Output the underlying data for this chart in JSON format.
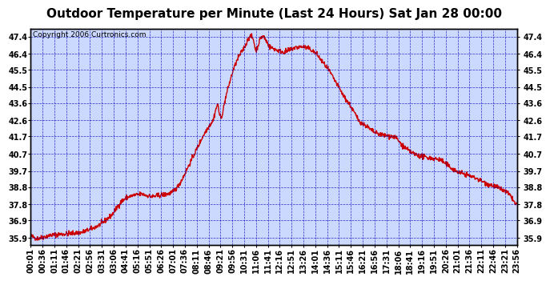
{
  "title": "Outdoor Temperature per Minute (Last 24 Hours) Sat Jan 28 00:00",
  "copyright": "Copyright 2006 Curtronics.com",
  "background_color": "#ccd9ff",
  "line_color": "#cc0000",
  "line_width": 1.0,
  "y_ticks": [
    35.9,
    36.9,
    37.8,
    38.8,
    39.7,
    40.7,
    41.7,
    42.6,
    43.6,
    44.5,
    45.5,
    46.4,
    47.4
  ],
  "ylim": [
    35.5,
    47.85
  ],
  "xlim": [
    0,
    24
  ],
  "x_tick_labels": [
    "00:01",
    "00:36",
    "01:11",
    "01:46",
    "02:21",
    "02:56",
    "03:31",
    "03:06",
    "04:41",
    "05:16",
    "05:51",
    "06:26",
    "07:01",
    "07:36",
    "08:11",
    "08:46",
    "09:21",
    "09:56",
    "10:31",
    "11:06",
    "11:41",
    "12:16",
    "12:51",
    "13:26",
    "14:01",
    "14:36",
    "15:11",
    "15:46",
    "16:21",
    "16:56",
    "17:31",
    "18:06",
    "18:41",
    "19:16",
    "19:51",
    "20:26",
    "21:01",
    "21:36",
    "22:11",
    "22:46",
    "23:21",
    "23:56"
  ],
  "grid_color": "#0000bb",
  "grid_style": "--",
  "grid_alpha": 0.8,
  "title_fontsize": 11,
  "tick_fontsize": 7,
  "copyright_fontsize": 6.5,
  "keypoints": [
    [
      0.0,
      36.0
    ],
    [
      0.3,
      35.85
    ],
    [
      0.5,
      35.9
    ],
    [
      1.0,
      36.05
    ],
    [
      1.5,
      36.1
    ],
    [
      2.0,
      36.15
    ],
    [
      2.5,
      36.2
    ],
    [
      3.0,
      36.4
    ],
    [
      3.5,
      36.7
    ],
    [
      3.8,
      37.0
    ],
    [
      4.0,
      37.2
    ],
    [
      4.3,
      37.7
    ],
    [
      4.5,
      38.0
    ],
    [
      4.75,
      38.2
    ],
    [
      5.0,
      38.3
    ],
    [
      5.25,
      38.35
    ],
    [
      5.5,
      38.4
    ],
    [
      5.75,
      38.3
    ],
    [
      6.0,
      38.25
    ],
    [
      6.25,
      38.3
    ],
    [
      6.5,
      38.35
    ],
    [
      6.75,
      38.4
    ],
    [
      7.0,
      38.5
    ],
    [
      7.25,
      38.8
    ],
    [
      7.5,
      39.3
    ],
    [
      7.75,
      39.9
    ],
    [
      8.0,
      40.5
    ],
    [
      8.25,
      41.1
    ],
    [
      8.5,
      41.7
    ],
    [
      8.75,
      42.2
    ],
    [
      9.0,
      42.6
    ],
    [
      9.15,
      43.3
    ],
    [
      9.25,
      43.55
    ],
    [
      9.3,
      43.0
    ],
    [
      9.4,
      42.7
    ],
    [
      9.5,
      43.2
    ],
    [
      9.6,
      43.8
    ],
    [
      9.75,
      44.5
    ],
    [
      10.0,
      45.5
    ],
    [
      10.25,
      46.2
    ],
    [
      10.5,
      46.7
    ],
    [
      10.65,
      47.0
    ],
    [
      10.75,
      47.35
    ],
    [
      10.9,
      47.4
    ],
    [
      11.0,
      47.2
    ],
    [
      11.1,
      46.6
    ],
    [
      11.2,
      46.8
    ],
    [
      11.35,
      47.35
    ],
    [
      11.5,
      47.4
    ],
    [
      11.65,
      47.1
    ],
    [
      11.8,
      46.8
    ],
    [
      12.0,
      46.7
    ],
    [
      12.2,
      46.6
    ],
    [
      12.5,
      46.5
    ],
    [
      12.75,
      46.6
    ],
    [
      13.0,
      46.75
    ],
    [
      13.25,
      46.8
    ],
    [
      13.5,
      46.8
    ],
    [
      13.75,
      46.7
    ],
    [
      14.0,
      46.5
    ],
    [
      14.15,
      46.35
    ],
    [
      14.3,
      46.1
    ],
    [
      14.5,
      45.8
    ],
    [
      14.75,
      45.4
    ],
    [
      15.0,
      44.9
    ],
    [
      15.25,
      44.4
    ],
    [
      15.5,
      43.9
    ],
    [
      15.75,
      43.5
    ],
    [
      16.0,
      43.0
    ],
    [
      16.2,
      42.6
    ],
    [
      16.4,
      42.4
    ],
    [
      16.5,
      42.35
    ],
    [
      16.75,
      42.1
    ],
    [
      17.0,
      41.9
    ],
    [
      17.25,
      41.8
    ],
    [
      17.5,
      41.75
    ],
    [
      17.75,
      41.7
    ],
    [
      18.0,
      41.65
    ],
    [
      18.25,
      41.3
    ],
    [
      18.5,
      41.0
    ],
    [
      18.75,
      40.8
    ],
    [
      19.0,
      40.65
    ],
    [
      19.25,
      40.55
    ],
    [
      19.5,
      40.5
    ],
    [
      19.75,
      40.45
    ],
    [
      20.0,
      40.4
    ],
    [
      20.25,
      40.35
    ],
    [
      20.5,
      40.1
    ],
    [
      20.75,
      39.9
    ],
    [
      21.0,
      39.7
    ],
    [
      21.25,
      39.6
    ],
    [
      21.5,
      39.5
    ],
    [
      21.75,
      39.4
    ],
    [
      22.0,
      39.3
    ],
    [
      22.25,
      39.15
    ],
    [
      22.5,
      39.0
    ],
    [
      22.75,
      38.9
    ],
    [
      23.0,
      38.8
    ],
    [
      23.25,
      38.65
    ],
    [
      23.5,
      38.5
    ],
    [
      23.75,
      38.2
    ],
    [
      23.93,
      37.8
    ]
  ]
}
